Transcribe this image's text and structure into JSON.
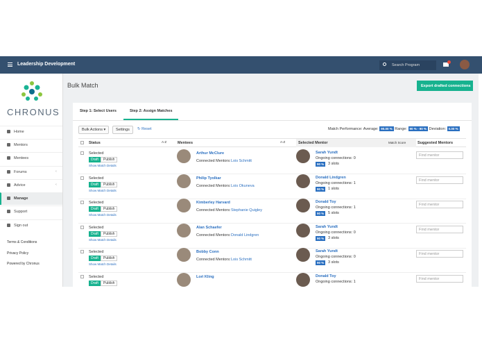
{
  "header": {
    "title": "Leadership Development",
    "search_placeholder": "Search Program"
  },
  "sidebar": {
    "brand": "CHRONUS",
    "nav": [
      "Home",
      "Mentors",
      "Mentees",
      "Forums",
      "Advice",
      "Manage",
      "Support",
      "Sign out"
    ],
    "footer": [
      "Terms & Conditions",
      "Privacy Policy",
      "Powered by Chronus"
    ]
  },
  "page": {
    "title": "Bulk Match",
    "export_button": "Export drafted connections"
  },
  "tabs": [
    "Step 1: Select Users",
    "Step 2: Assign Matches"
  ],
  "toolbar": {
    "bulk_actions": "Bulk Actions",
    "settings": "Settings",
    "reset": "Reset",
    "performance_label": "Match Performance:",
    "average_label": "Average:",
    "average": "90.00 %",
    "range_label": "Range:",
    "range": "90 % - 90 %",
    "deviation_label": "Deviation:",
    "deviation": "0.00 %"
  },
  "table": {
    "columns": {
      "status": "Status",
      "status_sort": "A-Z",
      "mentees": "Mentees",
      "mentees_sort": "A-Z",
      "selected_mentor": "Selected Mentor",
      "match_score": "Match Score",
      "suggested": "Suggested Mentors"
    },
    "rows": [
      {
        "status": "Selected",
        "draft": "Draft",
        "publish": "Publish",
        "details": "Show Match Details",
        "mentee": "Arthur McClure",
        "connected_label": "Connected Mentors:",
        "connected": "Lois Schmitt",
        "mentor": "Sarah Yundt",
        "ongoing": "Ongoing connections: 0",
        "score": "90 %",
        "slots": "3 slots",
        "find": "Find mentor"
      },
      {
        "status": "Selected",
        "draft": "Draft",
        "publish": "Publish",
        "details": "Show Match Details",
        "mentee": "Philip Tyolkar",
        "connected_label": "Connected Mentors:",
        "connected": "Lois Okuneva",
        "mentor": "Donald Lindgren",
        "ongoing": "Ongoing connections: 1",
        "score": "90 %",
        "slots": "1 slots",
        "find": "Find mentor"
      },
      {
        "status": "Selected",
        "draft": "Draft",
        "publish": "Publish",
        "details": "Show Match Details",
        "mentee": "Kimberley Harvard",
        "connected_label": "Connected Mentors:",
        "connected": "Stephanie Quigley",
        "mentor": "Donald Toy",
        "ongoing": "Ongoing connections: 1",
        "score": "90 %",
        "slots": "5 slots",
        "find": "Find mentor"
      },
      {
        "status": "Selected",
        "draft": "Draft",
        "publish": "Publish",
        "details": "Show Match Details",
        "mentee": "Alan Schaefer",
        "connected_label": "Connected Mentors:",
        "connected": "Donald Lindgren",
        "mentor": "Sarah Yundt",
        "ongoing": "Ongoing connections: 0",
        "score": "90 %",
        "slots": "3 slots",
        "find": "Find mentor"
      },
      {
        "status": "Selected",
        "draft": "Draft",
        "publish": "Publish",
        "details": "Show Match Details",
        "mentee": "Bobby Conn",
        "connected_label": "Connected Mentors:",
        "connected": "Lois Schmitt",
        "mentor": "Sarah Yundt",
        "ongoing": "Ongoing connections: 0",
        "score": "90 %",
        "slots": "3 slots",
        "find": "Find mentor"
      },
      {
        "status": "Selected",
        "draft": "Draft",
        "publish": "Publish",
        "mentee": "Lori Kling",
        "mentor": "Donald Toy",
        "ongoing": "Ongoing connections: 1",
        "find": "Find mentor"
      }
    ]
  }
}
